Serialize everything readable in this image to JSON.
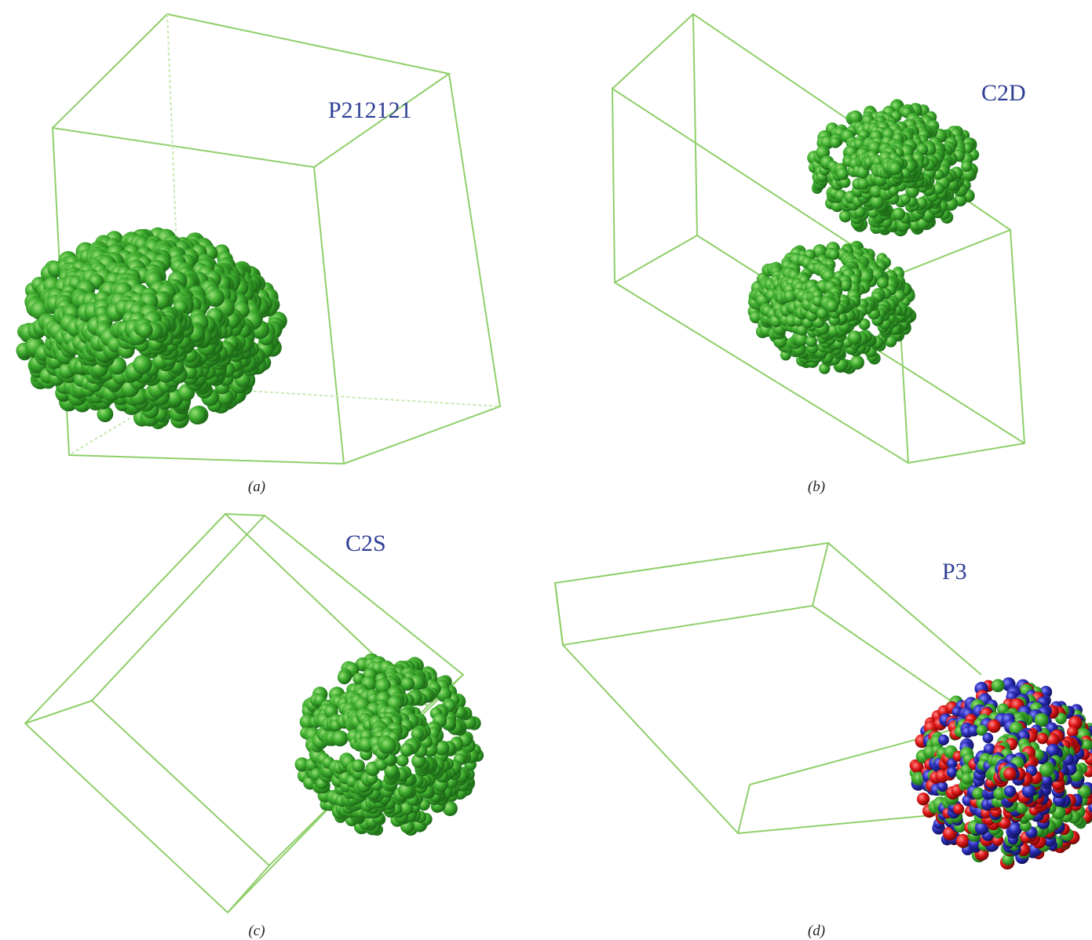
{
  "panels": [
    {
      "label": "P212121",
      "caption": "(a)"
    },
    {
      "label": "C2D",
      "caption": "(b)"
    },
    {
      "label": "C2S",
      "caption": "(c)"
    },
    {
      "label": "P3",
      "caption": "(d)"
    }
  ]
}
